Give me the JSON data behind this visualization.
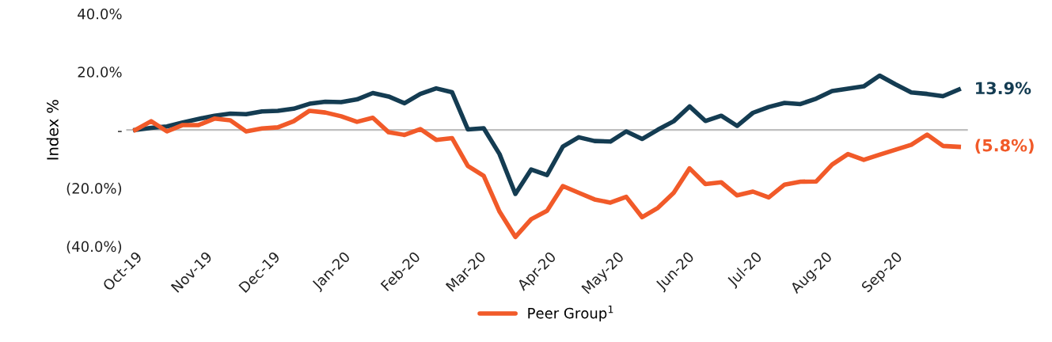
{
  "chart_data": {
    "type": "line",
    "ylabel": "Index %",
    "x": [
      "2019-10-01",
      "2019-10-08",
      "2019-10-15",
      "2019-10-22",
      "2019-10-29",
      "2019-11-05",
      "2019-11-12",
      "2019-11-19",
      "2019-11-26",
      "2019-12-03",
      "2019-12-10",
      "2019-12-17",
      "2019-12-24",
      "2019-12-31",
      "2020-01-07",
      "2020-01-14",
      "2020-01-21",
      "2020-01-28",
      "2020-02-04",
      "2020-02-11",
      "2020-02-18",
      "2020-02-25",
      "2020-03-03",
      "2020-03-10",
      "2020-03-17",
      "2020-03-24",
      "2020-03-31",
      "2020-04-07",
      "2020-04-14",
      "2020-04-21",
      "2020-04-28",
      "2020-05-05",
      "2020-05-12",
      "2020-05-19",
      "2020-05-26",
      "2020-06-02",
      "2020-06-09",
      "2020-06-16",
      "2020-06-23",
      "2020-06-30",
      "2020-07-07",
      "2020-07-14",
      "2020-07-21",
      "2020-07-28",
      "2020-08-04",
      "2020-08-11",
      "2020-08-18",
      "2020-08-25",
      "2020-09-01",
      "2020-09-08",
      "2020-09-15",
      "2020-09-22",
      "2020-09-29"
    ],
    "series": [
      {
        "color": "#143c52",
        "values": [
          0,
          0.7,
          1.2,
          2.6,
          3.8,
          4.9,
          5.6,
          5.4,
          6.4,
          6.6,
          7.3,
          9.0,
          9.7,
          9.6,
          10.5,
          12.7,
          11.5,
          9.2,
          12.4,
          14.3,
          13.0,
          0.2,
          0.6,
          -8.3,
          -22.0,
          -13.6,
          -15.5,
          -5.7,
          -2.5,
          -3.8,
          -4.0,
          -0.5,
          -3.1,
          0.1,
          3.0,
          8.1,
          3.1,
          4.9,
          1.4,
          5.9,
          7.9,
          9.3,
          8.9,
          10.8,
          13.4,
          14.2,
          15.0,
          18.7,
          15.7,
          12.9,
          12.4,
          11.6,
          13.9
        ]
      },
      {
        "name": "Peer Group$^{1}$",
        "color": "#f15a29",
        "values": [
          0,
          3.0,
          -0.5,
          1.7,
          1.7,
          3.9,
          3.3,
          -0.5,
          0.5,
          0.9,
          3.0,
          6.6,
          6.0,
          4.7,
          2.8,
          4.2,
          -0.8,
          -1.7,
          0.3,
          -3.4,
          -2.8,
          -12.4,
          -15.8,
          -28.1,
          -36.8,
          -30.7,
          -27.8,
          -19.3,
          -21.6,
          -23.9,
          -25.0,
          -23.0,
          -30.0,
          -26.8,
          -21.6,
          -13.2,
          -18.6,
          -18.0,
          -22.5,
          -21.2,
          -23.2,
          -18.8,
          -17.8,
          -17.7,
          -11.9,
          -8.3,
          -10.3,
          -8.5,
          -6.8,
          -5.1,
          -1.6,
          -5.5,
          -5.8
        ]
      }
    ],
    "annotations": [
      {
        "text": "13.9%",
        "x": "2020-09-29",
        "y": 13.9
      },
      {
        "text": "(5.8%)",
        "x": "2020-09-29",
        "y": -5.8
      }
    ],
    "xlim": [
      "2019-09-27",
      "2020-10-03"
    ],
    "xticks": [
      {
        "value": "2019-10-01",
        "label": "Oct-19"
      },
      {
        "value": "2019-11-01",
        "label": "Nov-19"
      },
      {
        "value": "2019-12-01",
        "label": "Dec-19"
      },
      {
        "value": "2020-01-01",
        "label": "Jan-20"
      },
      {
        "value": "2020-02-01",
        "label": "Feb-20"
      },
      {
        "value": "2020-03-01",
        "label": "Mar-20"
      },
      {
        "value": "2020-04-01",
        "label": "Apr-20"
      },
      {
        "value": "2020-05-01",
        "label": "May-20"
      },
      {
        "value": "2020-06-01",
        "label": "Jun-20"
      },
      {
        "value": "2020-07-01",
        "label": "Jul-20"
      },
      {
        "value": "2020-08-01",
        "label": "Aug-20"
      },
      {
        "value": "2020-09-01",
        "label": "Sep-20"
      }
    ],
    "ylim": [
      -40,
      40
    ],
    "yticks": [
      {
        "value": 40,
        "label": "40.0%"
      },
      {
        "value": 20,
        "label": "20.0%"
      },
      {
        "value": 0,
        "label": "-"
      },
      {
        "value": -20,
        "label": "(20.0%)"
      },
      {
        "value": -40,
        "label": "(40.0%)"
      }
    ],
    "ref_lines": [
      {
        "axis": "y",
        "value": 0,
        "color": "#bfbfbf"
      }
    ],
    "grid": false,
    "legend": "bottom",
    "marker": "none",
    "line_style": "solid"
  }
}
